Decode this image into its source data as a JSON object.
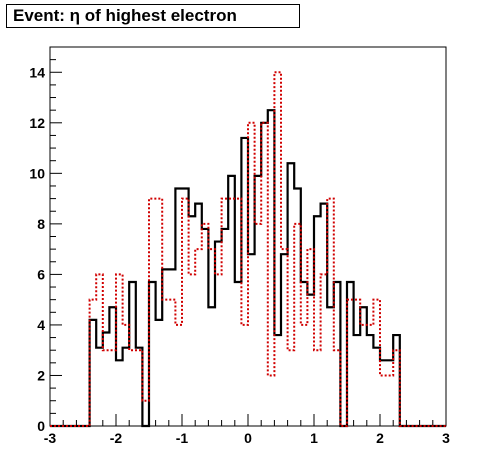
{
  "chart_data": {
    "type": "histogram",
    "title": "Event: η of highest electron",
    "xlim": [
      -3,
      3
    ],
    "ylim": [
      0,
      15
    ],
    "x_ticks": [
      "-3",
      "-2",
      "-1",
      "0",
      "1",
      "2",
      "3"
    ],
    "y_ticks": [
      "0",
      "2",
      "4",
      "6",
      "8",
      "10",
      "12",
      "14"
    ],
    "bin_width": 0.1,
    "grid": false,
    "series": [
      {
        "style": "solid",
        "color": "#000000",
        "bins": [
          [
            -3.0,
            0
          ],
          [
            -2.9,
            0
          ],
          [
            -2.8,
            0
          ],
          [
            -2.7,
            0
          ],
          [
            -2.6,
            0
          ],
          [
            -2.5,
            0
          ],
          [
            -2.4,
            4.2
          ],
          [
            -2.3,
            3.1
          ],
          [
            -2.2,
            3.7
          ],
          [
            -2.1,
            4.7
          ],
          [
            -2.0,
            2.6
          ],
          [
            -1.9,
            3.1
          ],
          [
            -1.8,
            5.7
          ],
          [
            -1.7,
            3.1
          ],
          [
            -1.6,
            0
          ],
          [
            -1.5,
            5.7
          ],
          [
            -1.4,
            4.2
          ],
          [
            -1.3,
            6.2
          ],
          [
            -1.2,
            6.2
          ],
          [
            -1.1,
            9.4
          ],
          [
            -1.0,
            9.4
          ],
          [
            -0.9,
            8.3
          ],
          [
            -0.8,
            8.8
          ],
          [
            -0.7,
            7.8
          ],
          [
            -0.6,
            4.7
          ],
          [
            -0.5,
            7.3
          ],
          [
            -0.4,
            7.8
          ],
          [
            -0.3,
            9.9
          ],
          [
            -0.2,
            5.7
          ],
          [
            -0.1,
            11.4
          ],
          [
            0.0,
            6.8
          ],
          [
            0.1,
            9.9
          ],
          [
            0.2,
            12.0
          ],
          [
            0.3,
            12.5
          ],
          [
            0.4,
            3.6
          ],
          [
            0.5,
            6.8
          ],
          [
            0.6,
            10.4
          ],
          [
            0.7,
            9.4
          ],
          [
            0.8,
            5.7
          ],
          [
            0.9,
            5.2
          ],
          [
            1.0,
            8.3
          ],
          [
            1.1,
            8.8
          ],
          [
            1.2,
            4.7
          ],
          [
            1.3,
            5.7
          ],
          [
            1.4,
            0
          ],
          [
            1.5,
            5.7
          ],
          [
            1.6,
            3.6
          ],
          [
            1.7,
            4.7
          ],
          [
            1.8,
            3.6
          ],
          [
            1.9,
            3.1
          ],
          [
            2.0,
            2.6
          ],
          [
            2.1,
            2.6
          ],
          [
            2.2,
            3.6
          ],
          [
            2.3,
            0
          ],
          [
            2.4,
            0
          ],
          [
            2.5,
            0
          ],
          [
            2.6,
            0
          ],
          [
            2.7,
            0
          ],
          [
            2.8,
            0
          ],
          [
            2.9,
            0
          ]
        ]
      },
      {
        "style": "dotted",
        "color": "#d00000",
        "bins": [
          [
            -3.0,
            0
          ],
          [
            -2.9,
            0
          ],
          [
            -2.8,
            0
          ],
          [
            -2.7,
            0
          ],
          [
            -2.6,
            0
          ],
          [
            -2.5,
            0
          ],
          [
            -2.4,
            5.0
          ],
          [
            -2.3,
            6.0
          ],
          [
            -2.2,
            3.0
          ],
          [
            -2.1,
            3.0
          ],
          [
            -2.0,
            6.0
          ],
          [
            -1.9,
            4.0
          ],
          [
            -1.8,
            3.0
          ],
          [
            -1.7,
            3.0
          ],
          [
            -1.6,
            1.0
          ],
          [
            -1.5,
            9.0
          ],
          [
            -1.4,
            9.0
          ],
          [
            -1.3,
            5.0
          ],
          [
            -1.2,
            5.0
          ],
          [
            -1.1,
            4.0
          ],
          [
            -1.0,
            9.0
          ],
          [
            -0.9,
            6.0
          ],
          [
            -0.8,
            7.0
          ],
          [
            -0.7,
            8.0
          ],
          [
            -0.6,
            7.0
          ],
          [
            -0.5,
            6.0
          ],
          [
            -0.4,
            9.0
          ],
          [
            -0.3,
            9.0
          ],
          [
            -0.2,
            9.0
          ],
          [
            -0.1,
            4.0
          ],
          [
            0.0,
            12.0
          ],
          [
            0.1,
            8.0
          ],
          [
            0.2,
            12.0
          ],
          [
            0.3,
            2.0
          ],
          [
            0.4,
            14.0
          ],
          [
            0.5,
            7.0
          ],
          [
            0.6,
            3.0
          ],
          [
            0.7,
            8.0
          ],
          [
            0.8,
            4.0
          ],
          [
            0.9,
            7.0
          ],
          [
            1.0,
            3.0
          ],
          [
            1.1,
            6.0
          ],
          [
            1.2,
            9.0
          ],
          [
            1.3,
            3.0
          ],
          [
            1.4,
            0
          ],
          [
            1.5,
            5.0
          ],
          [
            1.6,
            5.0
          ],
          [
            1.7,
            4.0
          ],
          [
            1.8,
            4.0
          ],
          [
            1.9,
            5.0
          ],
          [
            2.0,
            2.0
          ],
          [
            2.1,
            2.0
          ],
          [
            2.2,
            3.0
          ],
          [
            2.3,
            0
          ],
          [
            2.4,
            0
          ],
          [
            2.5,
            0
          ],
          [
            2.6,
            0
          ],
          [
            2.7,
            0
          ],
          [
            2.8,
            0
          ],
          [
            2.9,
            0
          ]
        ]
      }
    ]
  }
}
